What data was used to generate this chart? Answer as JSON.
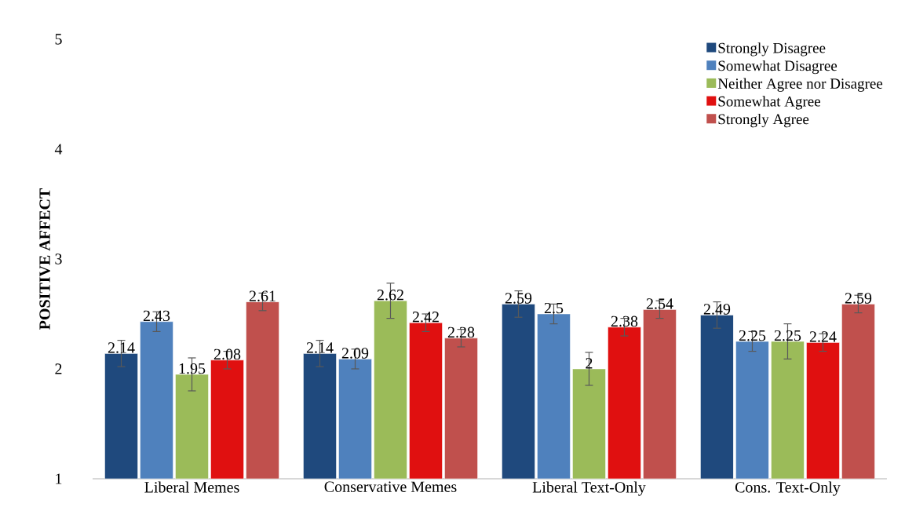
{
  "chart_data": {
    "type": "bar",
    "ylabel": "POSITIVE AFFECT",
    "categories": [
      "Liberal Memes",
      "Conservative Memes",
      "Liberal Text-Only",
      "Cons. Text-Only"
    ],
    "series": [
      {
        "name": "Strongly Disagree",
        "color": "#1f497d",
        "values": [
          2.14,
          2.14,
          2.59,
          2.49
        ],
        "errors": [
          0.12,
          0.12,
          0.12,
          0.12
        ]
      },
      {
        "name": "Somewhat Disagree",
        "color": "#4f81bd",
        "values": [
          2.43,
          2.09,
          2.5,
          2.25
        ],
        "errors": [
          0.09,
          0.09,
          0.09,
          0.09
        ]
      },
      {
        "name": "Neither Agree nor Disagree",
        "color": "#9bbb59",
        "values": [
          1.95,
          2.62,
          2,
          2.25
        ],
        "errors": [
          0.15,
          0.16,
          0.15,
          0.16
        ]
      },
      {
        "name": "Somewhat Agree",
        "color": "#e01010",
        "values": [
          2.08,
          2.42,
          2.38,
          2.24
        ],
        "errors": [
          0.08,
          0.08,
          0.08,
          0.08
        ]
      },
      {
        "name": "Strongly Agree",
        "color": "#c0504d",
        "values": [
          2.61,
          2.28,
          2.54,
          2.59
        ],
        "errors": [
          0.08,
          0.08,
          0.08,
          0.08
        ]
      }
    ],
    "ylim": [
      1,
      5
    ],
    "yticks": [
      1,
      2,
      3,
      4,
      5
    ],
    "data_labels": true,
    "legend": "top right",
    "grid": false
  }
}
